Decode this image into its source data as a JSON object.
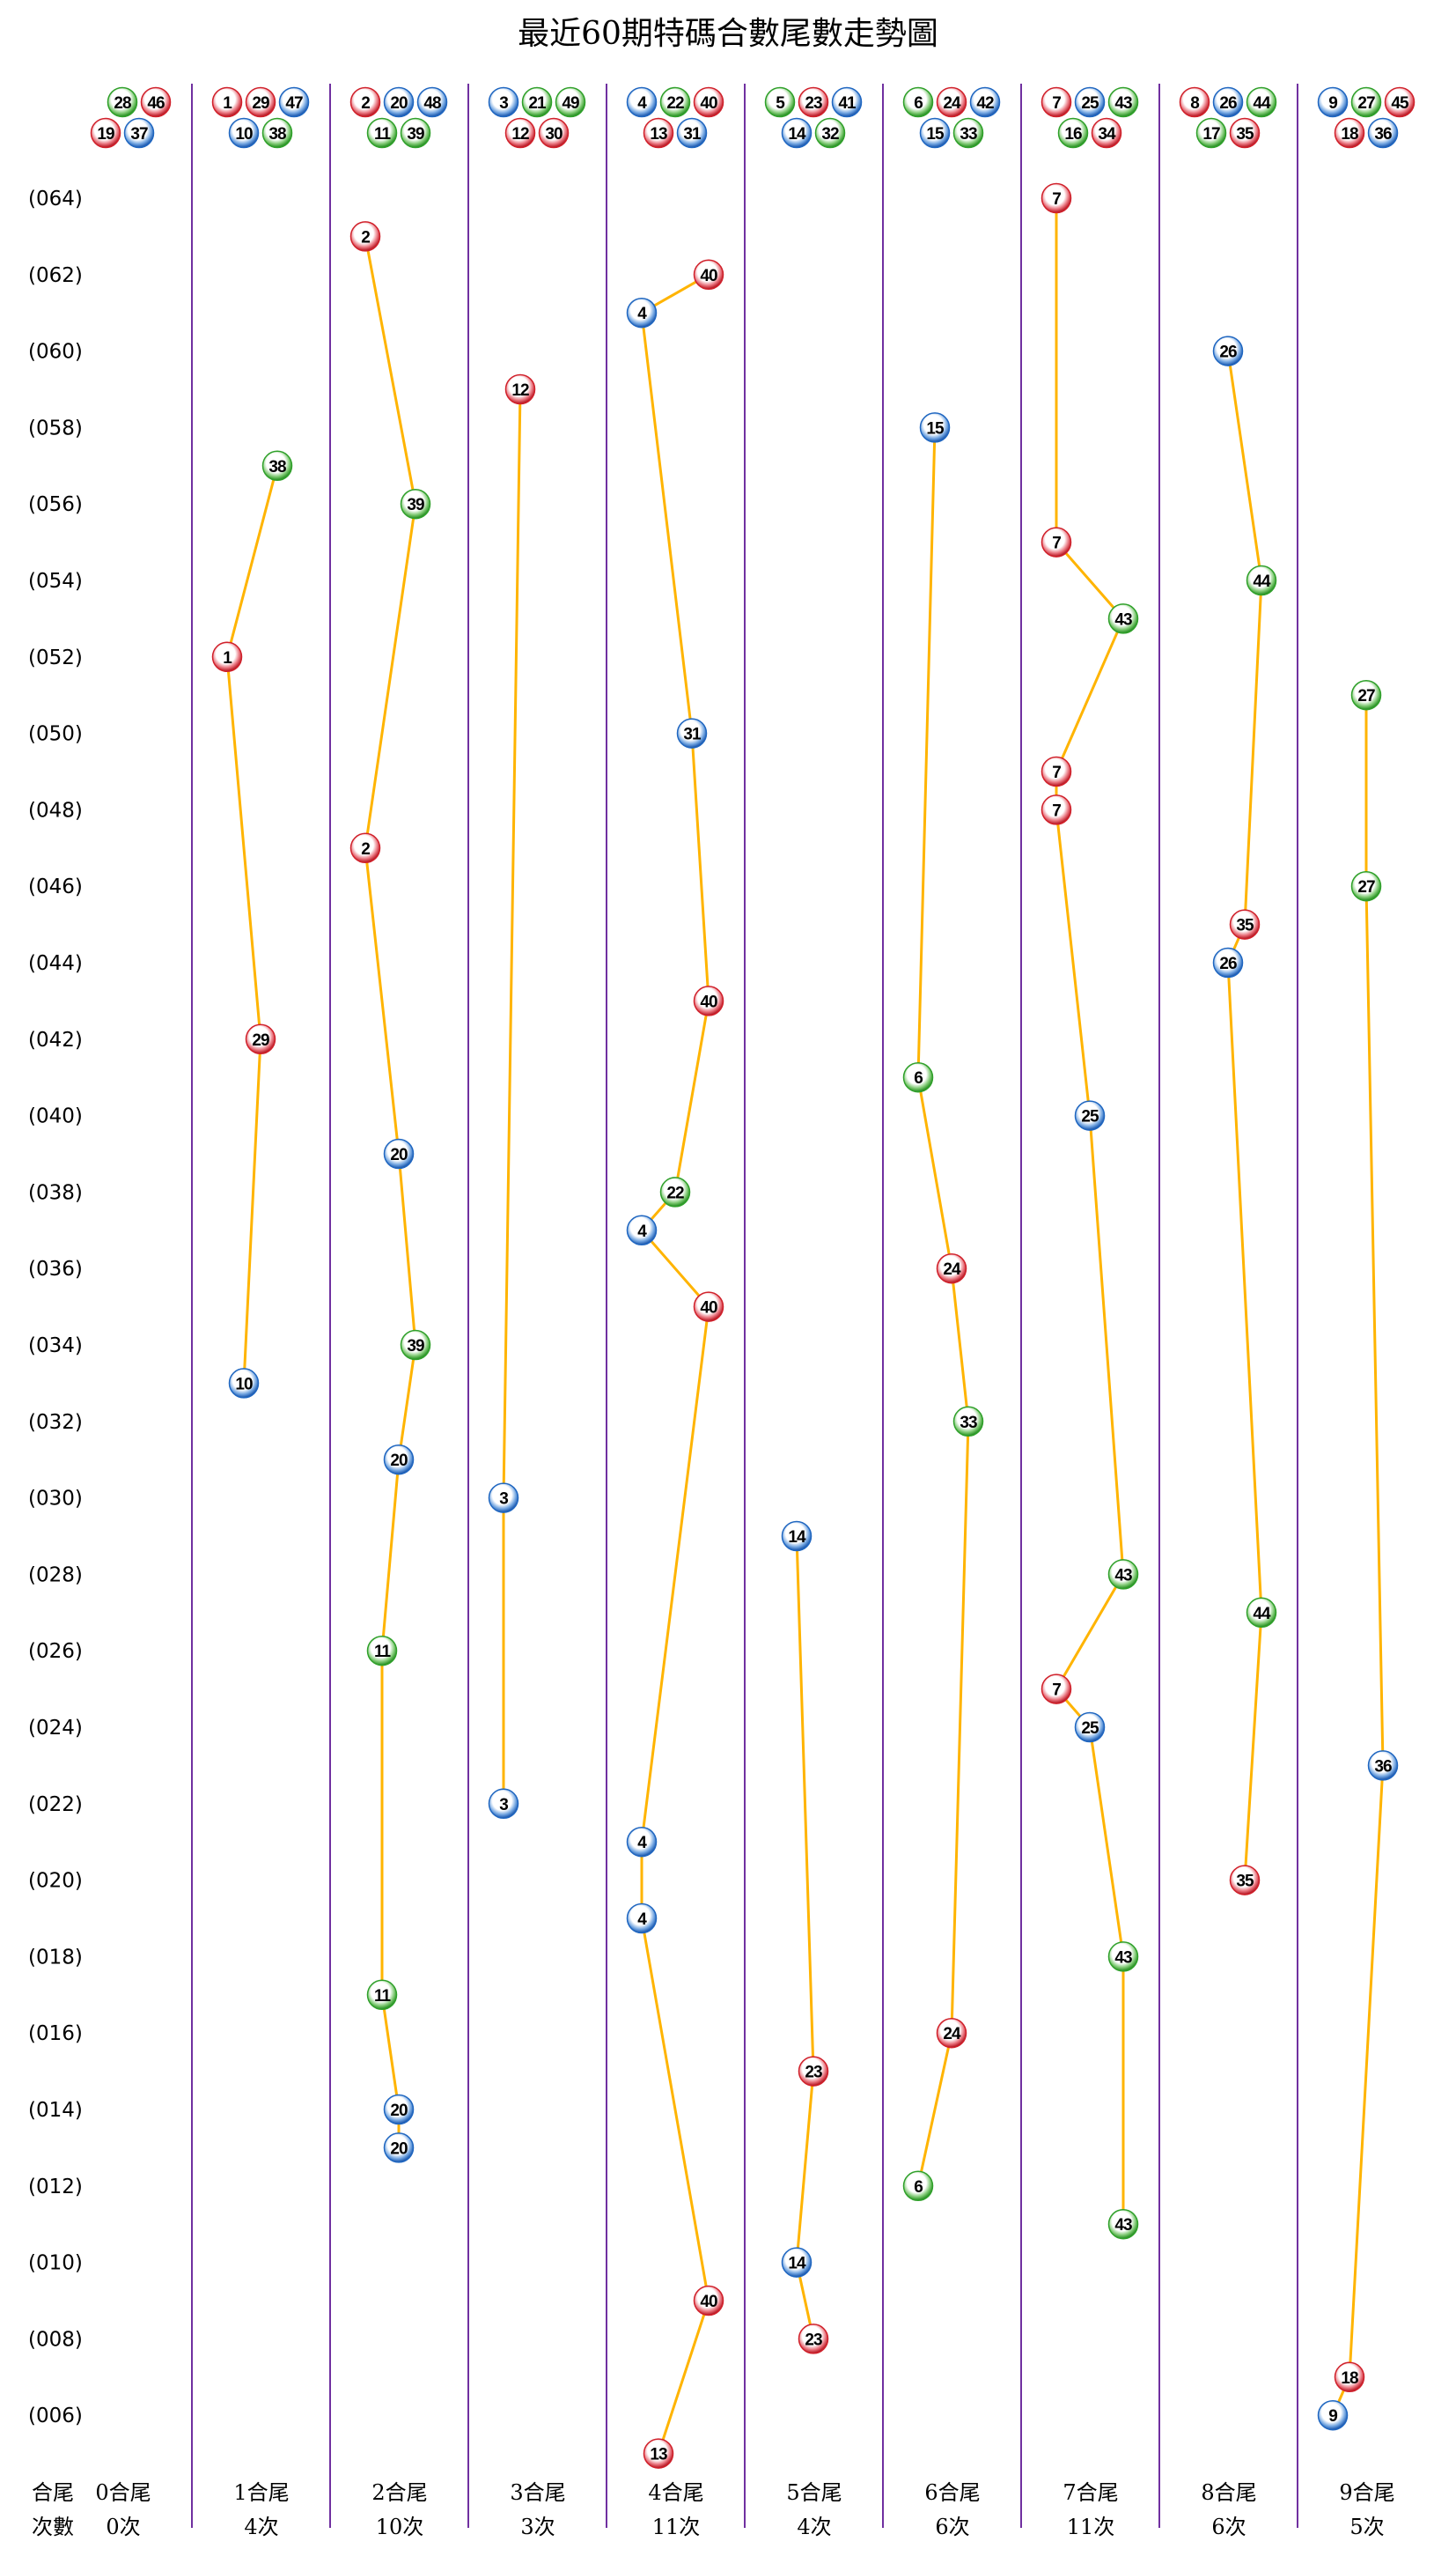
{
  "chart_data": {
    "type": "scatter",
    "title": "最近60期特碼合數尾數走勢圖",
    "row_labels": [
      "(064)",
      "(062)",
      "(060)",
      "(058)",
      "(056)",
      "(054)",
      "(052)",
      "(050)",
      "(048)",
      "(046)",
      "(044)",
      "(042)",
      "(040)",
      "(038)",
      "(036)",
      "(034)",
      "(032)",
      "(030)",
      "(028)",
      "(026)",
      "(024)",
      "(022)",
      "(020)",
      "(018)",
      "(016)",
      "(014)",
      "(012)",
      "(010)",
      "(008)",
      "(006)"
    ],
    "period_range": [
      5,
      64
    ],
    "colors": {
      "red": "#d0202a",
      "blue": "#1f66c0",
      "green": "#2fa02a",
      "grid": "#7030a0",
      "line": "#ffb400"
    },
    "red_numbers": [
      1,
      2,
      7,
      8,
      12,
      13,
      18,
      19,
      23,
      24,
      29,
      30,
      34,
      35,
      40,
      45,
      46
    ],
    "blue_numbers": [
      3,
      4,
      9,
      10,
      14,
      15,
      20,
      25,
      26,
      31,
      36,
      37,
      41,
      42,
      47,
      48
    ],
    "green_numbers": [
      5,
      6,
      11,
      16,
      17,
      21,
      22,
      27,
      28,
      32,
      33,
      38,
      39,
      43,
      44,
      49
    ],
    "footer": {
      "row1_label": "合尾",
      "row2_label": "次數"
    },
    "columns": [
      {
        "label": "0合尾",
        "count": "0次",
        "numbers": [
          19,
          28,
          37,
          46
        ],
        "points": []
      },
      {
        "label": "1合尾",
        "count": "4次",
        "numbers": [
          1,
          10,
          29,
          38,
          47
        ],
        "points": [
          [
            57,
            38
          ],
          [
            52,
            1
          ],
          [
            42,
            29
          ],
          [
            33,
            10
          ]
        ]
      },
      {
        "label": "2合尾",
        "count": "10次",
        "numbers": [
          2,
          11,
          20,
          39,
          48
        ],
        "points": [
          [
            63,
            2
          ],
          [
            56,
            39
          ],
          [
            47,
            2
          ],
          [
            39,
            20
          ],
          [
            34,
            39
          ],
          [
            31,
            20
          ],
          [
            26,
            11
          ],
          [
            17,
            11
          ],
          [
            14,
            20
          ],
          [
            13,
            20
          ]
        ]
      },
      {
        "label": "3合尾",
        "count": "3次",
        "numbers": [
          3,
          12,
          21,
          30,
          49
        ],
        "points": [
          [
            59,
            12
          ],
          [
            30,
            3
          ],
          [
            22,
            3
          ]
        ]
      },
      {
        "label": "4合尾",
        "count": "11次",
        "numbers": [
          4,
          13,
          22,
          31,
          40
        ],
        "points": [
          [
            62,
            40
          ],
          [
            61,
            4
          ],
          [
            50,
            31
          ],
          [
            43,
            40
          ],
          [
            38,
            22
          ],
          [
            37,
            4
          ],
          [
            35,
            40
          ],
          [
            21,
            4
          ],
          [
            19,
            4
          ],
          [
            9,
            40
          ],
          [
            5,
            13
          ]
        ]
      },
      {
        "label": "5合尾",
        "count": "4次",
        "numbers": [
          5,
          14,
          23,
          32,
          41
        ],
        "points": [
          [
            29,
            14
          ],
          [
            15,
            23
          ],
          [
            10,
            14
          ],
          [
            8,
            23
          ]
        ]
      },
      {
        "label": "6合尾",
        "count": "6次",
        "numbers": [
          6,
          15,
          24,
          33,
          42
        ],
        "points": [
          [
            58,
            15
          ],
          [
            41,
            6
          ],
          [
            36,
            24
          ],
          [
            32,
            33
          ],
          [
            16,
            24
          ],
          [
            12,
            6
          ]
        ]
      },
      {
        "label": "7合尾",
        "count": "11次",
        "numbers": [
          7,
          16,
          25,
          34,
          43
        ],
        "points": [
          [
            64,
            7
          ],
          [
            55,
            7
          ],
          [
            53,
            43
          ],
          [
            49,
            7
          ],
          [
            48,
            7
          ],
          [
            40,
            25
          ],
          [
            28,
            43
          ],
          [
            25,
            7
          ],
          [
            24,
            25
          ],
          [
            18,
            43
          ],
          [
            11,
            43
          ]
        ]
      },
      {
        "label": "8合尾",
        "count": "6次",
        "numbers": [
          8,
          17,
          26,
          35,
          44
        ],
        "points": [
          [
            60,
            26
          ],
          [
            54,
            44
          ],
          [
            45,
            35
          ],
          [
            44,
            26
          ],
          [
            27,
            44
          ],
          [
            20,
            35
          ]
        ]
      },
      {
        "label": "9合尾",
        "count": "5次",
        "numbers": [
          9,
          18,
          27,
          36,
          45
        ],
        "points": [
          [
            51,
            27
          ],
          [
            46,
            27
          ],
          [
            23,
            36
          ],
          [
            7,
            18
          ],
          [
            6,
            9
          ]
        ]
      }
    ]
  }
}
